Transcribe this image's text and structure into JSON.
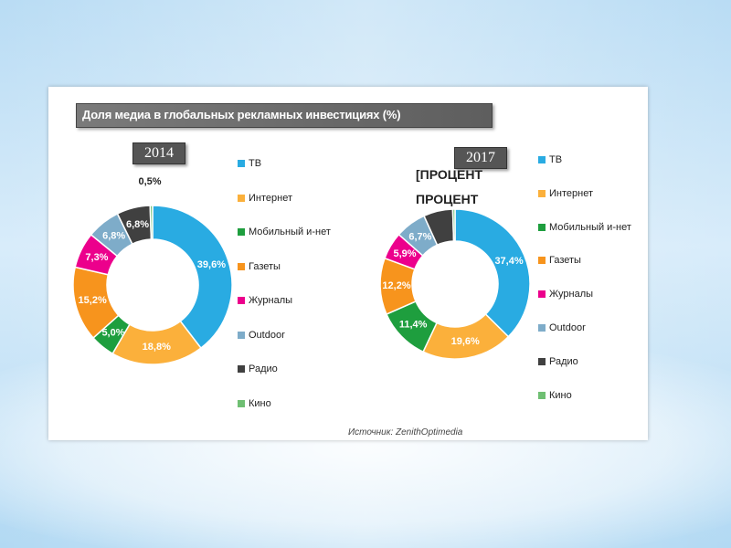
{
  "title": "Доля медиа в глобальных рекламных инвестициях (%)",
  "source": "Источник: ZenithOptimedia",
  "overlay_text": {
    "line1": "[ПРОЦЕНТ",
    "line2": "ПРОЦЕНТ",
    "line3": "]"
  },
  "colors": {
    "ТВ": "#29abe2",
    "Интернет": "#fbb03b",
    "Мобильный и-нет": "#1e9e3e",
    "Газеты": "#f7941d",
    "Журналы": "#ec008c",
    "Outdoor": "#7eacc9",
    "Радио": "#404040",
    "Кино": "#6fbf73"
  },
  "chart_data": [
    {
      "type": "pie",
      "donut": true,
      "title": "2014",
      "categories": [
        "ТВ",
        "Интернет",
        "Мобильный и-нет",
        "Газеты",
        "Журналы",
        "Outdoor",
        "Радио",
        "Кино"
      ],
      "values": [
        39.6,
        18.8,
        5.0,
        15.2,
        7.3,
        6.8,
        6.8,
        0.5
      ],
      "labels": [
        "39,6%",
        "18,8%",
        "5,0%",
        "15,2%",
        "7,3%",
        "6,8%",
        "6,8%",
        "0,5%"
      ],
      "legend": [
        "ТВ",
        "Интернет",
        "Мобильный и-нет",
        "Газеты",
        "Журналы",
        "Outdoor",
        "Радио",
        "Кино"
      ]
    },
    {
      "type": "pie",
      "donut": true,
      "title": "2017",
      "categories": [
        "ТВ",
        "Интернет",
        "Мобильный и-нет",
        "Газеты",
        "Журналы",
        "Outdoor",
        "Радио",
        "Кино"
      ],
      "values": [
        37.4,
        19.6,
        11.4,
        12.2,
        5.9,
        6.7,
        6.3,
        0.5
      ],
      "labels": [
        "37,4%",
        "19,6%",
        "11,4%",
        "12,2%",
        "5,9%",
        "6,7%",
        "",
        ""
      ],
      "legend": [
        "ТВ",
        "Интернет",
        "Мобильный и-нет",
        "Газеты",
        "Журналы",
        "Outdoor",
        "Радио",
        "Кино"
      ]
    }
  ]
}
